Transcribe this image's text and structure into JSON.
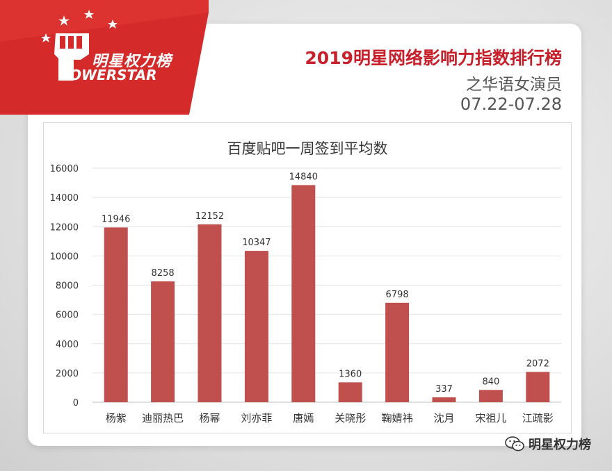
{
  "brand": {
    "cn": "明星权力榜",
    "en": "OWERSTAR",
    "footer": "明星权力榜"
  },
  "header": {
    "title": "2019明星网络影响力指数排行榜",
    "subtitle": "之华语女演员",
    "daterange": "07.22-07.28"
  },
  "colors": {
    "bar": "#c0504d",
    "banner": "#d42a2a",
    "title": "#c8202a"
  },
  "chart_data": {
    "type": "bar",
    "title": "百度贴吧一周签到平均数",
    "categories": [
      "杨紫",
      "迪丽热巴",
      "杨幂",
      "刘亦菲",
      "唐嫣",
      "关晓彤",
      "鞠婧祎",
      "沈月",
      "宋祖儿",
      "江疏影"
    ],
    "values": [
      11946,
      8258,
      12152,
      10347,
      14840,
      1360,
      6798,
      337,
      840,
      2072
    ],
    "yticks": [
      0,
      2000,
      4000,
      6000,
      8000,
      10000,
      12000,
      14000,
      16000
    ],
    "ylim": [
      0,
      16000
    ],
    "grid": true,
    "legend": "none"
  }
}
